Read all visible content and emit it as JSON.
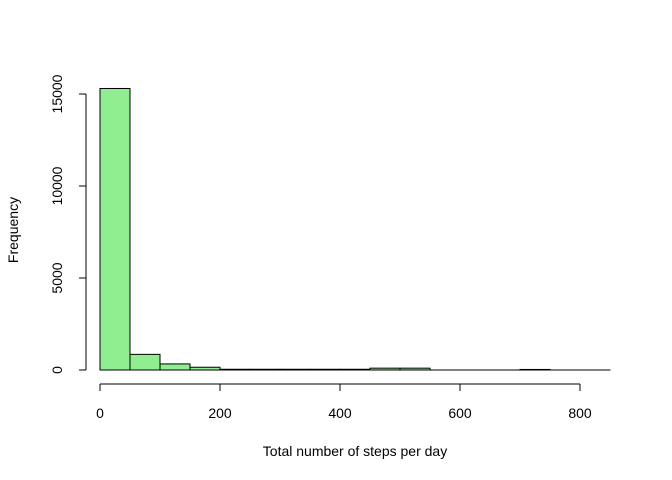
{
  "chart_data": {
    "type": "bar",
    "subtype": "histogram",
    "xlabel": "Total number of steps per day",
    "ylabel": "Frequency",
    "bar_color": "#90EE90",
    "bar_stroke": "#000000",
    "xlim": [
      0,
      850
    ],
    "ylim": [
      0,
      16000
    ],
    "xticks": [
      0,
      200,
      400,
      600,
      800
    ],
    "yticks": [
      0,
      5000,
      10000,
      15000
    ],
    "bins": [
      {
        "x0": 0,
        "x1": 50,
        "value": 15300
      },
      {
        "x0": 50,
        "x1": 100,
        "value": 850
      },
      {
        "x0": 100,
        "x1": 150,
        "value": 330
      },
      {
        "x0": 150,
        "x1": 200,
        "value": 150
      },
      {
        "x0": 200,
        "x1": 250,
        "value": 40
      },
      {
        "x0": 250,
        "x1": 300,
        "value": 40
      },
      {
        "x0": 300,
        "x1": 350,
        "value": 40
      },
      {
        "x0": 350,
        "x1": 400,
        "value": 40
      },
      {
        "x0": 400,
        "x1": 450,
        "value": 40
      },
      {
        "x0": 450,
        "x1": 500,
        "value": 100
      },
      {
        "x0": 500,
        "x1": 550,
        "value": 100
      },
      {
        "x0": 550,
        "x1": 600,
        "value": 0
      },
      {
        "x0": 600,
        "x1": 650,
        "value": 0
      },
      {
        "x0": 650,
        "x1": 700,
        "value": 0
      },
      {
        "x0": 700,
        "x1": 750,
        "value": 30
      },
      {
        "x0": 750,
        "x1": 800,
        "value": 0
      },
      {
        "x0": 800,
        "x1": 850,
        "value": 0
      }
    ]
  }
}
